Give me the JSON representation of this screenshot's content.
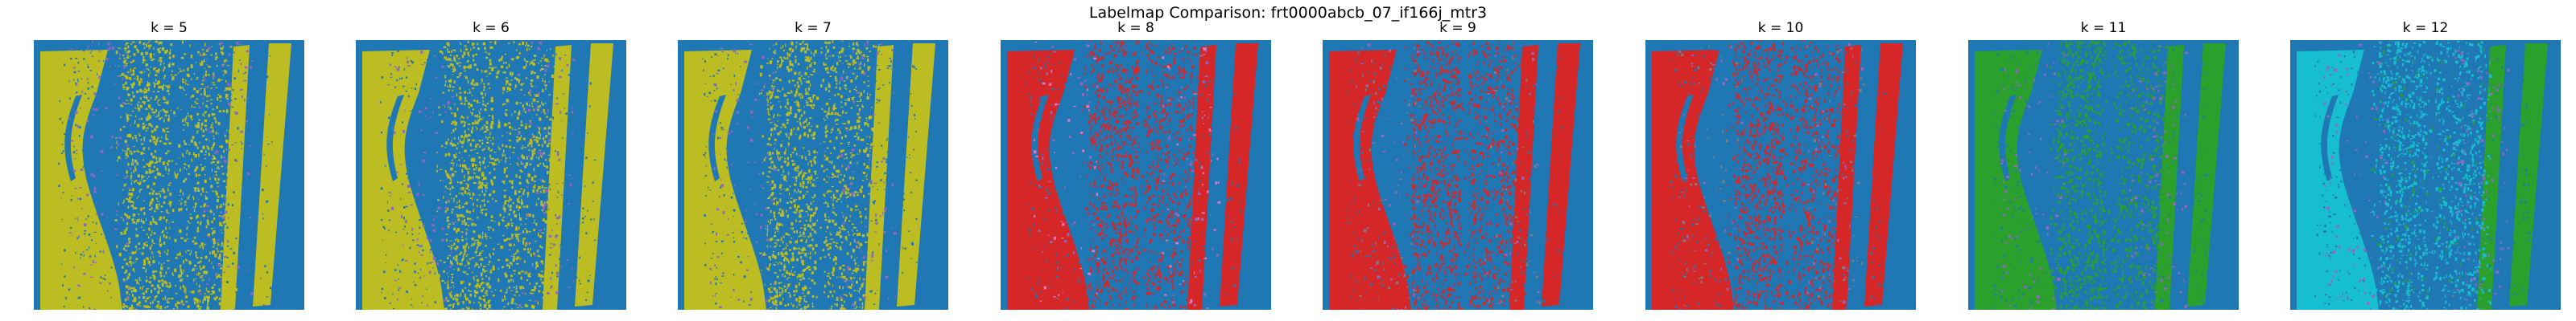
{
  "figure": {
    "title": "Labelmap Comparison: frt0000abcb_07_if166j_mtr3"
  },
  "colors": {
    "background": "#1f77b4",
    "olive": "#bcbd22",
    "red": "#d62728",
    "green": "#2ca02c",
    "cyan": "#17becf",
    "purple": "#9467bd",
    "pink": "#e377c2",
    "gray": "#7f7f7f"
  },
  "panels": [
    {
      "title": "k = 5",
      "primary": "olive",
      "secondary": "olive",
      "accents": [
        "purple"
      ]
    },
    {
      "title": "k = 6",
      "primary": "olive",
      "secondary": "olive",
      "accents": [
        "purple"
      ]
    },
    {
      "title": "k = 7",
      "primary": "olive",
      "secondary": "olive",
      "accents": [
        "purple"
      ]
    },
    {
      "title": "k = 8",
      "primary": "red",
      "secondary": "red",
      "accents": [
        "pink",
        "purple"
      ]
    },
    {
      "title": "k = 9",
      "primary": "red",
      "secondary": "red",
      "accents": [
        "gray",
        "purple"
      ]
    },
    {
      "title": "k = 10",
      "primary": "red",
      "secondary": "red",
      "accents": [
        "gray",
        "purple"
      ]
    },
    {
      "title": "k = 11",
      "primary": "green",
      "secondary": "green",
      "accents": [
        "purple"
      ]
    },
    {
      "title": "k = 12",
      "primary": "cyan",
      "secondary": "green",
      "accents": [
        "purple"
      ]
    }
  ]
}
